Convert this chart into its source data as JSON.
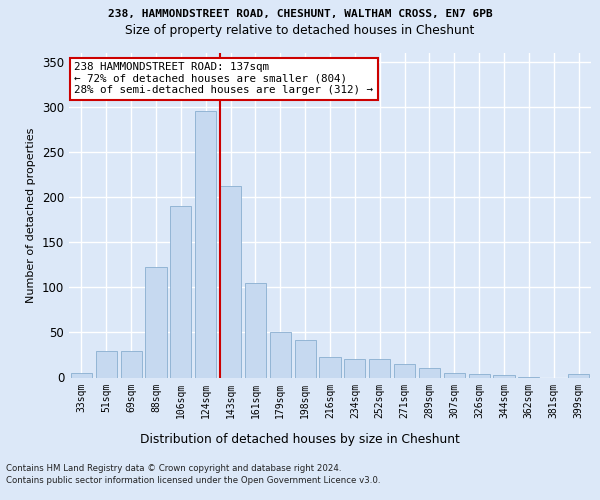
{
  "title1": "238, HAMMONDSTREET ROAD, CHESHUNT, WALTHAM CROSS, EN7 6PB",
  "title2": "Size of property relative to detached houses in Cheshunt",
  "xlabel": "Distribution of detached houses by size in Cheshunt",
  "ylabel": "Number of detached properties",
  "categories": [
    "33sqm",
    "51sqm",
    "69sqm",
    "88sqm",
    "106sqm",
    "124sqm",
    "143sqm",
    "161sqm",
    "179sqm",
    "198sqm",
    "216sqm",
    "234sqm",
    "252sqm",
    "271sqm",
    "289sqm",
    "307sqm",
    "326sqm",
    "344sqm",
    "362sqm",
    "381sqm",
    "399sqm"
  ],
  "values": [
    5,
    29,
    29,
    122,
    190,
    295,
    212,
    105,
    50,
    41,
    23,
    21,
    20,
    15,
    10,
    5,
    4,
    3,
    1,
    0,
    4
  ],
  "bar_color": "#c6d9f0",
  "bar_edge_color": "#89aed0",
  "vline_x_index": 6,
  "vline_color": "#cc0000",
  "annotation_text": "238 HAMMONDSTREET ROAD: 137sqm\n← 72% of detached houses are smaller (804)\n28% of semi-detached houses are larger (312) →",
  "annotation_box_color": "#ffffff",
  "annotation_box_edge": "#cc0000",
  "ylim": [
    0,
    360
  ],
  "yticks": [
    0,
    50,
    100,
    150,
    200,
    250,
    300,
    350
  ],
  "footer1": "Contains HM Land Registry data © Crown copyright and database right 2024.",
  "footer2": "Contains public sector information licensed under the Open Government Licence v3.0.",
  "bg_color": "#dce8f8",
  "plot_bg_color": "#dce8f8"
}
